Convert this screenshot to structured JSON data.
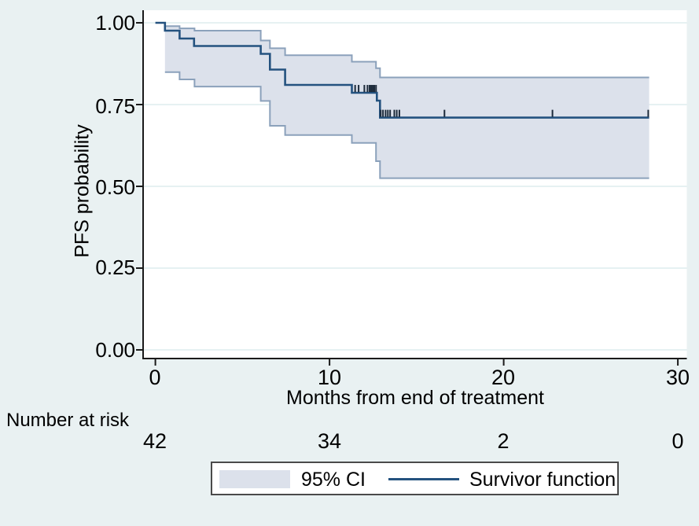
{
  "chart_data": {
    "type": "line",
    "subtype": "kaplan-meier-step",
    "title": "",
    "xlabel": "Months from end of treatment",
    "ylabel": "PFS probability",
    "xlim": [
      0,
      30.5
    ],
    "ylim": [
      0,
      1
    ],
    "grid": true,
    "legend_position": "bottom-center",
    "xticks": [
      0,
      10,
      20,
      30
    ],
    "xtick_labels": [
      "0",
      "10",
      "20",
      "30"
    ],
    "yticks": [
      0,
      0.25,
      0.5,
      0.75,
      1.0
    ],
    "ytick_labels": [
      "0.00",
      "0.25",
      "0.50",
      "0.75",
      "1.00"
    ],
    "end_month": 28.35,
    "series": [
      {
        "name": "Survivor function",
        "role": "survivor",
        "points": [
          [
            0,
            1.0
          ],
          [
            0.55,
            0.976
          ],
          [
            1.39,
            0.952
          ],
          [
            2.22,
            0.929
          ],
          [
            6.05,
            0.905
          ],
          [
            6.58,
            0.857
          ],
          [
            7.45,
            0.81
          ],
          [
            11.28,
            0.786
          ],
          [
            12.72,
            0.762
          ],
          [
            12.9,
            0.71
          ]
        ]
      },
      {
        "name": "95% CI upper",
        "role": "ci-upper",
        "points": [
          [
            0.55,
            0.99
          ],
          [
            1.39,
            0.983
          ],
          [
            2.25,
            0.976
          ],
          [
            6.05,
            0.946
          ],
          [
            6.58,
            0.922
          ],
          [
            7.45,
            0.901
          ],
          [
            11.28,
            0.881
          ],
          [
            12.67,
            0.861
          ],
          [
            12.9,
            0.833
          ]
        ]
      },
      {
        "name": "95% CI lower",
        "role": "ci-lower",
        "points": [
          [
            0.55,
            0.849
          ],
          [
            1.39,
            0.827
          ],
          [
            2.25,
            0.805
          ],
          [
            6.05,
            0.761
          ],
          [
            6.58,
            0.685
          ],
          [
            7.45,
            0.657
          ],
          [
            11.28,
            0.633
          ],
          [
            12.67,
            0.577
          ],
          [
            12.9,
            0.525
          ]
        ]
      }
    ],
    "censor_marks": [
      [
        11.47,
        0.786
      ],
      [
        11.67,
        0.786
      ],
      [
        12.0,
        0.786
      ],
      [
        12.18,
        0.786
      ],
      [
        12.3,
        0.786
      ],
      [
        12.39,
        0.786
      ],
      [
        12.48,
        0.786
      ],
      [
        12.57,
        0.786
      ],
      [
        12.67,
        0.786
      ],
      [
        12.94,
        0.71
      ],
      [
        13.07,
        0.71
      ],
      [
        13.22,
        0.71
      ],
      [
        13.35,
        0.71
      ],
      [
        13.48,
        0.71
      ],
      [
        13.72,
        0.71
      ],
      [
        13.86,
        0.71
      ],
      [
        14.01,
        0.71
      ],
      [
        16.6,
        0.71
      ],
      [
        22.8,
        0.71
      ],
      [
        28.3,
        0.71
      ]
    ],
    "number_at_risk": {
      "label": "Number at risk",
      "months": [
        0,
        10,
        20,
        30
      ],
      "counts": [
        "42",
        "34",
        "2",
        "0"
      ]
    },
    "legend": {
      "items": [
        {
          "swatch": "area",
          "label": "95% CI"
        },
        {
          "swatch": "line",
          "label": "Survivor function"
        }
      ]
    }
  },
  "colors": {
    "background": "#e9f1f2",
    "plot_background": "#ffffff",
    "gridline": "#e2eff1",
    "band_fill": "#dce1eb",
    "band_edge": "#8ba1bb",
    "survivor_line": "#24527f",
    "censor_tick": "#1c2a3a",
    "axis": "#1a1a1a",
    "text": "#000000",
    "legend_border": "#4a4a4a",
    "legend_background": "#ffffff"
  }
}
